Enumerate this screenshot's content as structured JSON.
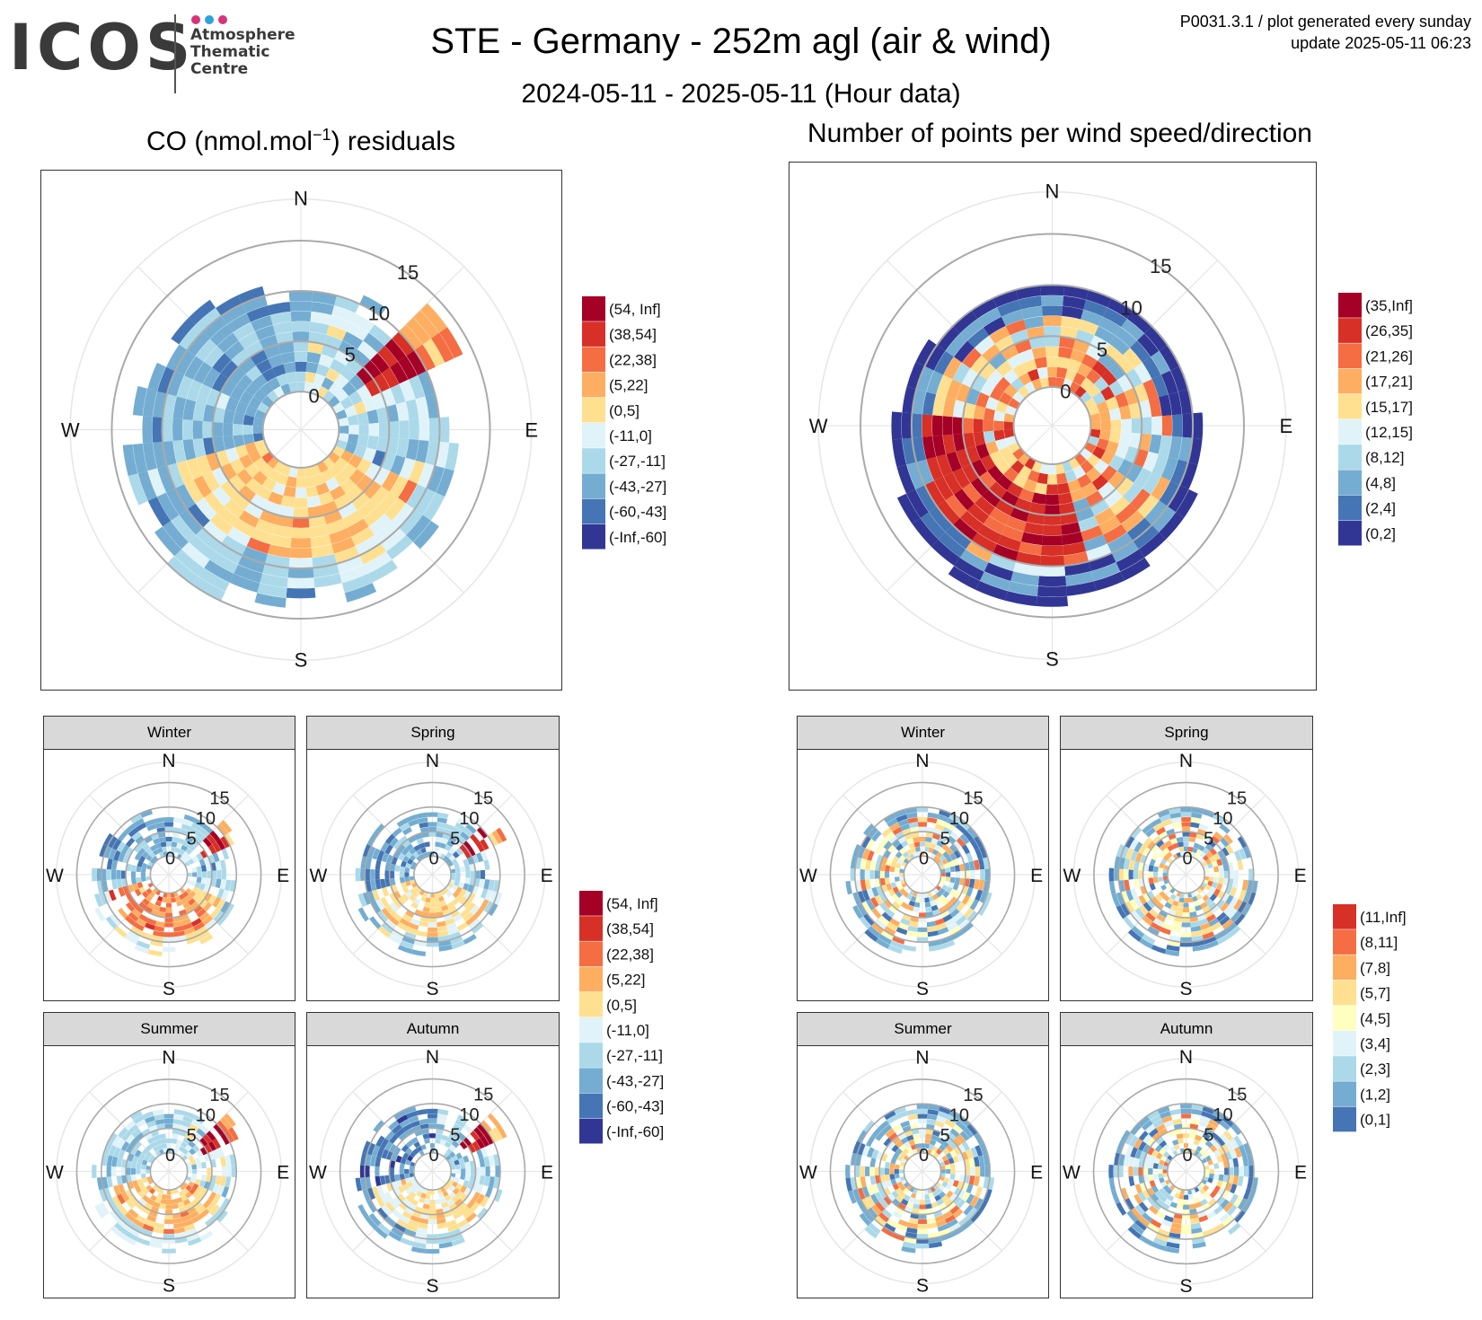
{
  "logo": {
    "word": "ICOS",
    "lines": [
      "Atmosphere",
      "Thematic",
      "Centre"
    ],
    "dot_colors": [
      "#d6337a",
      "#2ba3dc",
      "#d6337a"
    ]
  },
  "header": {
    "title": "STE - Germany - 252m agl (air & wind)",
    "subtitle": "2024-05-11 - 2025-05-11 (Hour data)",
    "product": "P0031.3.1 / plot generated every sunday",
    "update": "update  2025-05-11 06:23"
  },
  "panels": {
    "co_title_pre": "CO (nmol.mol",
    "co_title_sup": "−1",
    "co_title_post": ") residuals",
    "count_title": "Number of points per wind speed/direction",
    "seasons": [
      "Winter",
      "Spring",
      "Summer",
      "Autumn"
    ]
  },
  "compass": {
    "n": "N",
    "e": "E",
    "s": "S",
    "w": "W"
  },
  "speed_labels": [
    "0",
    "5",
    "10",
    "15"
  ],
  "legends": {
    "co": {
      "labels": [
        "(54, Inf]",
        "(38,54]",
        "(22,38]",
        "(5,22]",
        "(0,5]",
        "(-11,0]",
        "(-27,-11]",
        "(-43,-27]",
        "(-60,-43]",
        "(-Inf,-60]"
      ],
      "colors": [
        "#a50026",
        "#d73027",
        "#f46d43",
        "#fdae61",
        "#fee090",
        "#e0f3f8",
        "#abd9e9",
        "#74add1",
        "#4575b4",
        "#313695"
      ]
    },
    "count": {
      "labels": [
        "(35,Inf]",
        "(26,35]",
        "(21,26]",
        "(17,21]",
        "(15,17]",
        "(12,15]",
        "(8,12]",
        "(4,8]",
        "(2,4]",
        "(0,2]"
      ],
      "colors": [
        "#a50026",
        "#d73027",
        "#f46d43",
        "#fdae61",
        "#fee090",
        "#e0f3f8",
        "#abd9e9",
        "#74add1",
        "#4575b4",
        "#313695"
      ]
    },
    "count_season": {
      "labels": [
        "(11,Inf]",
        "(8,11]",
        "(7,8]",
        "(5,7]",
        "(4,5]",
        "(3,4]",
        "(2,3]",
        "(1,2]",
        "(0,1]"
      ],
      "colors": [
        "#d73027",
        "#f46d43",
        "#fdae61",
        "#fee090",
        "#ffffbf",
        "#e0f3f8",
        "#abd9e9",
        "#74add1",
        "#4575b4"
      ]
    }
  },
  "chart_data": [
    {
      "type": "heatmap",
      "subtype": "polar wind rose",
      "title": "CO (nmol.mol−1) residuals",
      "variable": "CO residual",
      "axes": {
        "theta": "wind direction",
        "r": "wind speed"
      },
      "r_ticks": [
        0,
        5,
        10,
        15
      ],
      "theta_labels": [
        "N",
        "E",
        "S",
        "W"
      ],
      "legend": [
        "(54, Inf]",
        "(38,54]",
        "(22,38]",
        "(5,22]",
        "(0,5]",
        "(-11,0]",
        "(-27,-11]",
        "(-43,-27]",
        "(-60,-43]",
        "(-Inf,-60]"
      ],
      "dominant": {
        "NE_high_speed": "(38,54] to (54, Inf]",
        "S_SW_low_speed": "(5,22]",
        "W_NW": "(-27,-11] to (-43,-27]"
      },
      "seed": 11,
      "pattern": "co"
    },
    {
      "type": "heatmap",
      "subtype": "polar wind rose",
      "title": "Number of points per wind speed/direction",
      "variable": "count",
      "axes": {
        "theta": "wind direction",
        "r": "wind speed"
      },
      "r_ticks": [
        0,
        5,
        10,
        15
      ],
      "theta_labels": [
        "N",
        "E",
        "S",
        "W"
      ],
      "legend": [
        "(35,Inf]",
        "(26,35]",
        "(21,26]",
        "(17,21]",
        "(15,17]",
        "(12,15]",
        "(8,12]",
        "(4,8]",
        "(2,4]",
        "(0,2]"
      ],
      "dominant": {
        "SW_mid_speed": "(26,35] to (35,Inf]",
        "outer_ring": "(0,2]"
      },
      "seed": 23,
      "pattern": "count"
    },
    {
      "type": "heatmap",
      "subtype": "polar wind rose",
      "facet": "Winter",
      "variable": "CO residual",
      "seed": 31,
      "pattern": "co_winter"
    },
    {
      "type": "heatmap",
      "subtype": "polar wind rose",
      "facet": "Spring",
      "variable": "CO residual",
      "seed": 37,
      "pattern": "co_spring"
    },
    {
      "type": "heatmap",
      "subtype": "polar wind rose",
      "facet": "Summer",
      "variable": "CO residual",
      "seed": 41,
      "pattern": "co_summer"
    },
    {
      "type": "heatmap",
      "subtype": "polar wind rose",
      "facet": "Autumn",
      "variable": "CO residual",
      "seed": 43,
      "pattern": "co_autumn"
    },
    {
      "type": "heatmap",
      "subtype": "polar wind rose",
      "facet": "Winter",
      "variable": "count",
      "seed": 53,
      "pattern": "cnt_season"
    },
    {
      "type": "heatmap",
      "subtype": "polar wind rose",
      "facet": "Spring",
      "variable": "count",
      "seed": 59,
      "pattern": "cnt_season"
    },
    {
      "type": "heatmap",
      "subtype": "polar wind rose",
      "facet": "Summer",
      "variable": "count",
      "seed": 61,
      "pattern": "cnt_season"
    },
    {
      "type": "heatmap",
      "subtype": "polar wind rose",
      "facet": "Autumn",
      "variable": "count",
      "seed": 67,
      "pattern": "cnt_season"
    }
  ]
}
